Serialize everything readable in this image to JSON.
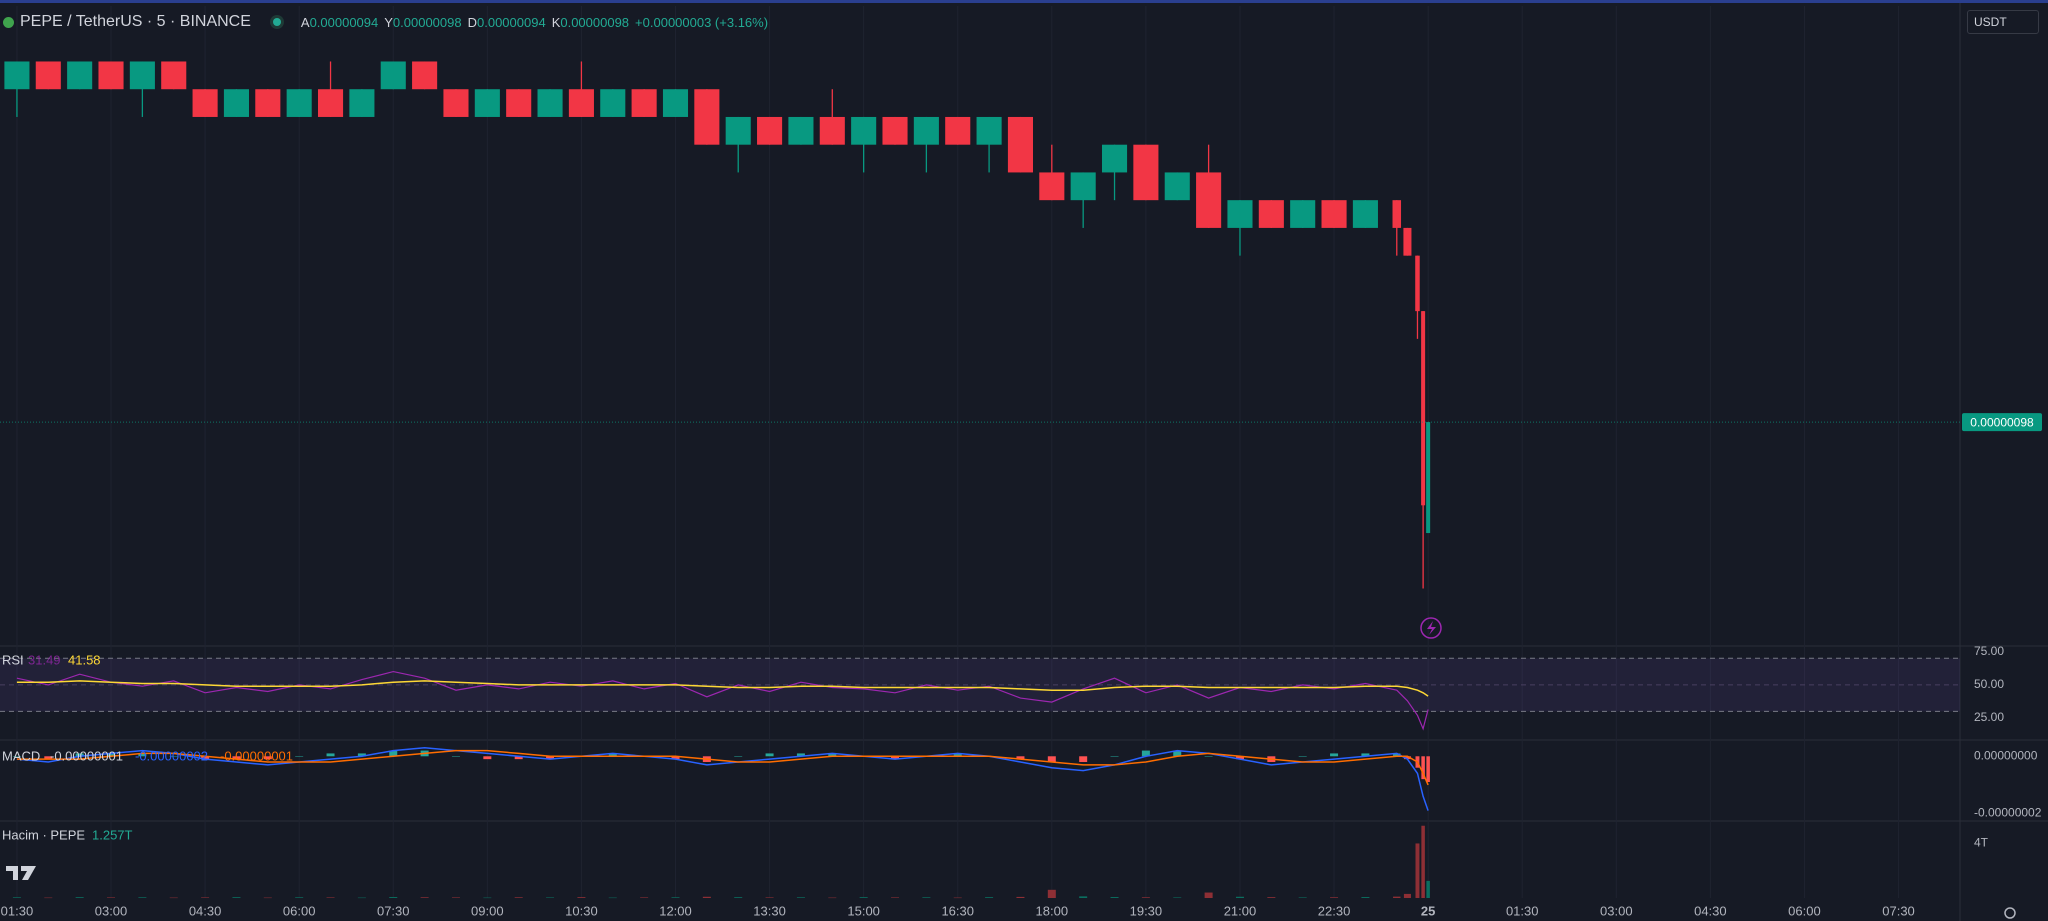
{
  "chart_data": [
    {
      "type": "candlestick",
      "title": "PEPE / TetherUS · 5 · BINANCE",
      "ohlc": [
        {
          "label": "A",
          "value": "0.00000094"
        },
        {
          "label": "Y",
          "value": "0.00000098"
        },
        {
          "label": "D",
          "value": "0.00000094"
        },
        {
          "label": "K",
          "value": "0.00000098"
        }
      ],
      "change": "+0.00000003 (+3.16%)",
      "currency": "USDT",
      "x": [
        1.5,
        2,
        2.5,
        3,
        3.5,
        4,
        4.5,
        5,
        5.5,
        6,
        6.5,
        7,
        7.5,
        8,
        8.5,
        9,
        9.5,
        10,
        10.5,
        11,
        11.5,
        12,
        12.5,
        13,
        13.5,
        14,
        14.5,
        15,
        15.5,
        16,
        16.5,
        17,
        17.5,
        18,
        18.5,
        19,
        19.5,
        20,
        20.5,
        21,
        21.5,
        22,
        22.5,
        23,
        23.5,
        23.67,
        23.83,
        23.92,
        24
      ],
      "open": [
        1.1e-06,
        1.11e-06,
        1.1e-06,
        1.11e-06,
        1.1e-06,
        1.11e-06,
        1.1e-06,
        1.09e-06,
        1.1e-06,
        1.09e-06,
        1.1e-06,
        1.09e-06,
        1.1e-06,
        1.11e-06,
        1.1e-06,
        1.09e-06,
        1.1e-06,
        1.09e-06,
        1.1e-06,
        1.09e-06,
        1.1e-06,
        1.09e-06,
        1.1e-06,
        1.08e-06,
        1.09e-06,
        1.08e-06,
        1.09e-06,
        1.08e-06,
        1.09e-06,
        1.08e-06,
        1.09e-06,
        1.08e-06,
        1.09e-06,
        1.07e-06,
        1.06e-06,
        1.07e-06,
        1.08e-06,
        1.06e-06,
        1.07e-06,
        1.05e-06,
        1.06e-06,
        1.05e-06,
        1.06e-06,
        1.05e-06,
        1.06e-06,
        1.05e-06,
        1.04e-06,
        1.02e-06,
        9.4e-07
      ],
      "high": [
        1.11e-06,
        1.11e-06,
        1.11e-06,
        1.11e-06,
        1.11e-06,
        1.11e-06,
        1.1e-06,
        1.1e-06,
        1.1e-06,
        1.1e-06,
        1.11e-06,
        1.1e-06,
        1.11e-06,
        1.11e-06,
        1.1e-06,
        1.1e-06,
        1.1e-06,
        1.1e-06,
        1.11e-06,
        1.1e-06,
        1.1e-06,
        1.1e-06,
        1.1e-06,
        1.09e-06,
        1.09e-06,
        1.09e-06,
        1.1e-06,
        1.09e-06,
        1.09e-06,
        1.09e-06,
        1.09e-06,
        1.09e-06,
        1.09e-06,
        1.08e-06,
        1.07e-06,
        1.08e-06,
        1.08e-06,
        1.07e-06,
        1.08e-06,
        1.06e-06,
        1.06e-06,
        1.06e-06,
        1.06e-06,
        1.06e-06,
        1.06e-06,
        1.05e-06,
        1.04e-06,
        1.02e-06,
        9.8e-07
      ],
      "low": [
        1.09e-06,
        1.1e-06,
        1.1e-06,
        1.1e-06,
        1.09e-06,
        1.1e-06,
        1.09e-06,
        1.09e-06,
        1.09e-06,
        1.09e-06,
        1.09e-06,
        1.09e-06,
        1.1e-06,
        1.1e-06,
        1.09e-06,
        1.09e-06,
        1.09e-06,
        1.09e-06,
        1.09e-06,
        1.09e-06,
        1.09e-06,
        1.09e-06,
        1.08e-06,
        1.07e-06,
        1.08e-06,
        1.08e-06,
        1.08e-06,
        1.07e-06,
        1.08e-06,
        1.07e-06,
        1.08e-06,
        1.07e-06,
        1.07e-06,
        1.06e-06,
        1.05e-06,
        1.06e-06,
        1.06e-06,
        1.06e-06,
        1.05e-06,
        1.04e-06,
        1.05e-06,
        1.05e-06,
        1.05e-06,
        1.05e-06,
        1.04e-06,
        1.04e-06,
        1.01e-06,
        9.2e-07,
        9.4e-07
      ],
      "close": [
        1.11e-06,
        1.1e-06,
        1.11e-06,
        1.1e-06,
        1.11e-06,
        1.1e-06,
        1.09e-06,
        1.1e-06,
        1.09e-06,
        1.1e-06,
        1.09e-06,
        1.1e-06,
        1.11e-06,
        1.1e-06,
        1.09e-06,
        1.1e-06,
        1.09e-06,
        1.1e-06,
        1.09e-06,
        1.1e-06,
        1.09e-06,
        1.1e-06,
        1.08e-06,
        1.09e-06,
        1.08e-06,
        1.09e-06,
        1.08e-06,
        1.09e-06,
        1.08e-06,
        1.09e-06,
        1.08e-06,
        1.09e-06,
        1.07e-06,
        1.06e-06,
        1.07e-06,
        1.08e-06,
        1.06e-06,
        1.07e-06,
        1.05e-06,
        1.06e-06,
        1.05e-06,
        1.06e-06,
        1.05e-06,
        1.06e-06,
        1.05e-06,
        1.04e-06,
        1.02e-06,
        9.5e-07,
        9.8e-07
      ],
      "up_color": "#089981",
      "down_color": "#f23645",
      "xlim": [
        1.23,
        32.48
      ],
      "xticks": [
        {
          "value": 1.5,
          "label": "01:30"
        },
        {
          "value": 3,
          "label": "03:00"
        },
        {
          "value": 4.5,
          "label": "04:30"
        },
        {
          "value": 6,
          "label": "06:00"
        },
        {
          "value": 7.5,
          "label": "07:30"
        },
        {
          "value": 9,
          "label": "09:00"
        },
        {
          "value": 10.5,
          "label": "10:30"
        },
        {
          "value": 12,
          "label": "12:00"
        },
        {
          "value": 13.5,
          "label": "13:30"
        },
        {
          "value": 15,
          "label": "15:00"
        },
        {
          "value": 16.5,
          "label": "16:30"
        },
        {
          "value": 18,
          "label": "18:00"
        },
        {
          "value": 19.5,
          "label": "19:30"
        },
        {
          "value": 21,
          "label": "21:00"
        },
        {
          "value": 22.5,
          "label": "22:30"
        },
        {
          "value": 24,
          "label": "25"
        },
        {
          "value": 25.5,
          "label": "01:30"
        },
        {
          "value": 27,
          "label": "03:00"
        },
        {
          "value": 28.5,
          "label": "04:30"
        },
        {
          "value": 30,
          "label": "06:00"
        },
        {
          "value": 31.5,
          "label": "07:30"
        }
      ],
      "ylim": [
        9e-07,
        1.13e-06
      ],
      "yticks": [
        {
          "value": 9.8e-07,
          "label": "0.00000098"
        }
      ],
      "grid": true
    },
    {
      "type": "line",
      "title": "RSI",
      "x": [
        1.5,
        2,
        2.5,
        3,
        3.5,
        4,
        4.5,
        5,
        5.5,
        6,
        6.5,
        7,
        7.5,
        8,
        8.5,
        9,
        9.5,
        10,
        10.5,
        11,
        11.5,
        12,
        12.5,
        13,
        13.5,
        14,
        14.5,
        15,
        15.5,
        16,
        16.5,
        17,
        17.5,
        18,
        18.5,
        19,
        19.5,
        20,
        20.5,
        21,
        21.5,
        22,
        22.5,
        23,
        23.5,
        23.67,
        23.83,
        23.92,
        24
      ],
      "series": [
        {
          "color": "#9c27b0",
          "values": [
            55,
            50,
            58,
            52,
            49,
            53,
            44,
            48,
            45,
            50,
            47,
            54,
            60,
            55,
            46,
            50,
            47,
            52,
            49,
            53,
            47,
            51,
            41,
            50,
            45,
            52,
            48,
            47,
            44,
            50,
            46,
            49,
            40,
            37,
            47,
            55,
            44,
            50,
            40,
            48,
            45,
            50,
            47,
            51,
            46,
            38,
            27,
            17,
            31.49
          ]
        },
        {
          "color": "#fdd835",
          "values": [
            52,
            52,
            53,
            52,
            51,
            51,
            50,
            49,
            49,
            49,
            49,
            50,
            52,
            53,
            52,
            51,
            50,
            50,
            50,
            50,
            50,
            50,
            49,
            48,
            48,
            49,
            49,
            48,
            48,
            48,
            48,
            48,
            47,
            46,
            46,
            48,
            49,
            49,
            48,
            48,
            48,
            48,
            48,
            49,
            49,
            48,
            46,
            44,
            41.58
          ]
        }
      ],
      "band": [
        30,
        70
      ],
      "ylim": [
        10,
        77
      ],
      "yticks": [
        {
          "value": 75,
          "label": "75.00"
        },
        {
          "value": 50,
          "label": "50.00"
        },
        {
          "value": 25,
          "label": "25.00"
        }
      ]
    },
    {
      "type": "macd",
      "title": "MACD",
      "readouts": [
        "-0.00000001",
        "-0.00000002",
        "-0.00000001"
      ],
      "x": [
        1.5,
        2,
        2.5,
        3,
        3.5,
        4,
        4.5,
        5,
        5.5,
        6,
        6.5,
        7,
        7.5,
        8,
        8.5,
        9,
        9.5,
        10,
        10.5,
        11,
        11.5,
        12,
        12.5,
        13,
        13.5,
        14,
        14.5,
        15,
        15.5,
        16,
        16.5,
        17,
        17.5,
        18,
        18.5,
        19,
        19.5,
        20,
        20.5,
        21,
        21.5,
        22,
        22.5,
        23,
        23.5,
        23.67,
        23.83,
        23.92,
        24
      ],
      "histogram": {
        "up_color": "#26a69a",
        "down_color": "#ff5252",
        "values": [
          0,
          -1e-09,
          1e-09,
          1e-09,
          1e-09,
          0,
          -1e-09,
          -1e-09,
          -1e-09,
          0,
          1e-09,
          1e-09,
          2e-09,
          2e-09,
          0,
          -1e-09,
          -1e-09,
          -1e-09,
          0,
          1e-09,
          0,
          -1e-09,
          -2e-09,
          0,
          1e-09,
          1e-09,
          1e-09,
          0,
          -1e-09,
          0,
          1e-09,
          0,
          -1e-09,
          -2e-09,
          -2e-09,
          0,
          2e-09,
          2e-09,
          0,
          -1e-09,
          -2e-09,
          0,
          1e-09,
          1e-09,
          1e-09,
          -1e-09,
          -4e-09,
          -8e-09,
          -9e-09
        ]
      },
      "series": [
        {
          "color": "#2962ff",
          "values": [
            -1e-09,
            -2e-09,
            0,
            1e-09,
            2e-09,
            1e-09,
            -1e-09,
            -2e-09,
            -3e-09,
            -2e-09,
            -1e-09,
            0,
            2e-09,
            3e-09,
            2e-09,
            1e-09,
            0,
            -1e-09,
            0,
            1e-09,
            0,
            -1e-09,
            -3e-09,
            -2e-09,
            -1e-09,
            0,
            1e-09,
            0,
            -1e-09,
            0,
            1e-09,
            0,
            -2e-09,
            -4e-09,
            -5e-09,
            -3e-09,
            0,
            2e-09,
            1e-09,
            -1e-09,
            -3e-09,
            -2e-09,
            -1e-09,
            0,
            1e-09,
            -1e-09,
            -6e-09,
            -1.4e-08,
            -1.9e-08
          ]
        },
        {
          "color": "#ff6d00",
          "values": [
            -1e-09,
            -1e-09,
            -1e-09,
            0,
            1e-09,
            1e-09,
            0,
            -1e-09,
            -2e-09,
            -2e-09,
            -2e-09,
            -1e-09,
            0,
            1e-09,
            2e-09,
            2e-09,
            1e-09,
            0,
            0,
            0,
            0,
            0,
            -1e-09,
            -2e-09,
            -2e-09,
            -1e-09,
            0,
            0,
            0,
            0,
            0,
            0,
            -1e-09,
            -2e-09,
            -3e-09,
            -3e-09,
            -2e-09,
            0,
            1e-09,
            0,
            -1e-09,
            -2e-09,
            -2e-09,
            -1e-09,
            0,
            0,
            -2e-09,
            -6e-09,
            -1e-08
          ]
        }
      ],
      "ylim": [
        -2.23e-08,
        5e-09
      ],
      "yticks": [
        {
          "value": 0,
          "label": "0.00000000"
        },
        {
          "value": -2e-08,
          "label": "-0.00000002"
        }
      ]
    },
    {
      "type": "bar",
      "title": "Hacim · PEPE",
      "readout": "1.257T",
      "x": [
        1.5,
        2,
        2.5,
        3,
        3.5,
        4,
        4.5,
        5,
        5.5,
        6,
        6.5,
        7,
        7.5,
        8,
        8.5,
        9,
        9.5,
        10,
        10.5,
        11,
        11.5,
        12,
        12.5,
        13,
        13.5,
        14,
        14.5,
        15,
        15.5,
        16,
        16.5,
        17,
        17.5,
        18,
        18.5,
        19,
        19.5,
        20,
        20.5,
        21,
        21.5,
        22,
        22.5,
        23,
        23.5,
        23.67,
        23.83,
        23.92,
        24
      ],
      "values": [
        50000000000.0,
        30000000000.0,
        60000000000.0,
        40000000000.0,
        50000000000.0,
        30000000000.0,
        40000000000.0,
        60000000000.0,
        30000000000.0,
        50000000000.0,
        40000000000.0,
        30000000000.0,
        70000000000.0,
        50000000000.0,
        40000000000.0,
        30000000000.0,
        50000000000.0,
        40000000000.0,
        60000000000.0,
        30000000000.0,
        40000000000.0,
        50000000000.0,
        90000000000.0,
        60000000000.0,
        40000000000.0,
        50000000000.0,
        30000000000.0,
        60000000000.0,
        40000000000.0,
        50000000000.0,
        30000000000.0,
        60000000000.0,
        80000000000.0,
        600000000000.0,
        120000000000.0,
        70000000000.0,
        50000000000.0,
        40000000000.0,
        400000000000.0,
        90000000000.0,
        60000000000.0,
        40000000000.0,
        50000000000.0,
        70000000000.0,
        100000000000.0,
        300000000000.0,
        4000000000000.0,
        5300000000000.0,
        1257000000000.0
      ],
      "up_color": "#0a6e5f",
      "down_color": "#8e2f35",
      "ylim": [
        0,
        5500000000000.0
      ],
      "yticks": [
        {
          "value": 4000000000000.0,
          "label": "4T"
        }
      ]
    }
  ]
}
